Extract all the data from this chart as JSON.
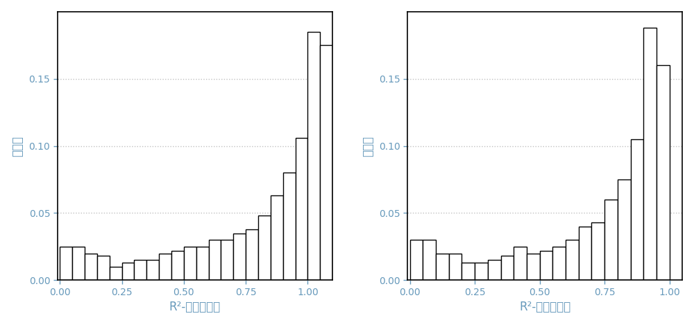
{
  "left_values": [
    0.025,
    0.025,
    0.02,
    0.018,
    0.01,
    0.013,
    0.015,
    0.015,
    0.02,
    0.022,
    0.025,
    0.025,
    0.03,
    0.03,
    0.035,
    0.038,
    0.048,
    0.063,
    0.08,
    0.106,
    0.185,
    0.175
  ],
  "right_values": [
    0.03,
    0.03,
    0.02,
    0.02,
    0.013,
    0.013,
    0.015,
    0.018,
    0.025,
    0.02,
    0.022,
    0.025,
    0.03,
    0.04,
    0.043,
    0.06,
    0.075,
    0.105,
    0.188,
    0.16
  ],
  "left_bin_edges": [
    0.0,
    0.05,
    0.1,
    0.15,
    0.2,
    0.25,
    0.3,
    0.35,
    0.4,
    0.45,
    0.5,
    0.55,
    0.6,
    0.65,
    0.7,
    0.75,
    0.8,
    0.85,
    0.9,
    0.95,
    1.0,
    1.05,
    1.1
  ],
  "right_bin_edges": [
    0.0,
    0.05,
    0.1,
    0.15,
    0.2,
    0.25,
    0.3,
    0.35,
    0.4,
    0.45,
    0.5,
    0.55,
    0.6,
    0.65,
    0.7,
    0.75,
    0.8,
    0.85,
    0.9,
    0.95,
    1.0,
    1.05
  ],
  "left_xlabel": "R²-负离子模式",
  "right_xlabel": "R²-正离子模式",
  "ylabel": "百分比",
  "left_xlim": [
    -0.01,
    1.1
  ],
  "right_xlim": [
    -0.01,
    1.05
  ],
  "ylim": [
    0.0,
    0.2
  ],
  "yticks": [
    0.0,
    0.05,
    0.1,
    0.15
  ],
  "xticks": [
    0.0,
    0.25,
    0.5,
    0.75,
    1.0
  ],
  "bar_color": "white",
  "bar_edgecolor": "black",
  "grid_color": "#c0c0c0",
  "tick_color": "#6699bb",
  "label_color": "#6699bb",
  "bg_color": "white",
  "bar_linewidth": 1.0,
  "xlabel_fontsize": 12,
  "ylabel_fontsize": 12,
  "tick_fontsize": 10
}
